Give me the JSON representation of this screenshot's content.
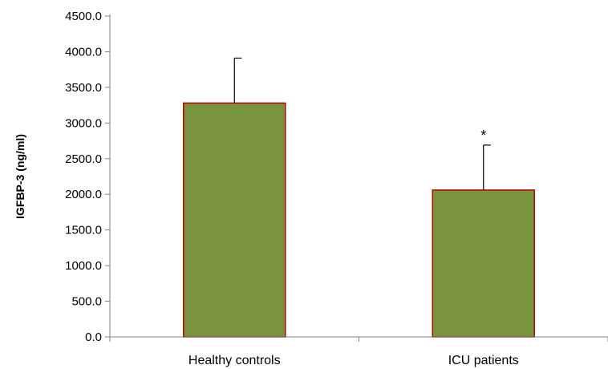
{
  "chart_data": {
    "type": "bar",
    "title": "",
    "xlabel": "",
    "ylabel": "IGFBP-3  (ng/ml)",
    "categories": [
      "Healthy controls",
      "ICU patients"
    ],
    "values": [
      3280,
      2060
    ],
    "error_upper": [
      630,
      630
    ],
    "annotations": [
      "",
      "*"
    ],
    "ylim": [
      0,
      4500
    ],
    "yticks": [
      0,
      500,
      1000,
      1500,
      2000,
      2500,
      3000,
      3500,
      4000,
      4500
    ],
    "ytick_labels": [
      "0.0",
      "500.0",
      "1000.0",
      "1500.0",
      "2000.0",
      "2500.0",
      "3000.0",
      "3500.0",
      "4000.0",
      "4500.0"
    ],
    "grid": false,
    "legend": "none",
    "colors": {
      "bar_fill": "#77933c",
      "bar_edge": "#c00000",
      "axis": "#808080",
      "error_bar": "#000000"
    }
  }
}
